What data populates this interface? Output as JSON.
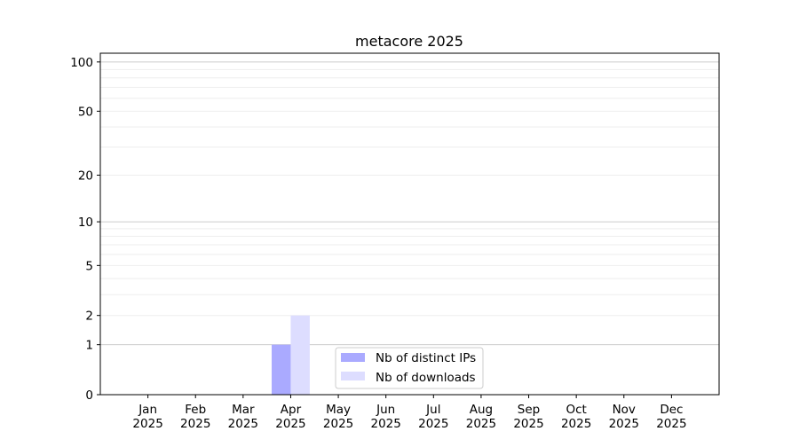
{
  "chart_data": {
    "type": "bar",
    "title": "metacore 2025",
    "xlabel": "",
    "ylabel": "",
    "categories": [
      "Jan\n2025",
      "Feb\n2025",
      "Mar\n2025",
      "Apr\n2025",
      "May\n2025",
      "Jun\n2025",
      "Jul\n2025",
      "Aug\n2025",
      "Sep\n2025",
      "Oct\n2025",
      "Nov\n2025",
      "Dec\n2025"
    ],
    "series": [
      {
        "name": "Nb of distinct IPs",
        "color": "#aaaaff",
        "values": [
          0,
          0,
          0,
          1,
          0,
          0,
          0,
          0,
          0,
          0,
          0,
          0
        ]
      },
      {
        "name": "Nb of downloads",
        "color": "#ddddff",
        "values": [
          0,
          0,
          0,
          2,
          0,
          0,
          0,
          0,
          0,
          0,
          0,
          0
        ]
      }
    ],
    "yscale": "log(1+y)",
    "yticks": [
      0,
      1,
      2,
      5,
      10,
      20,
      50,
      100
    ],
    "ytick_labels": [
      "0",
      "1",
      "2",
      "5",
      "10",
      "20",
      "50",
      "100"
    ],
    "ylim": [
      0,
      113
    ],
    "grid": true,
    "legend_position": "lower-center"
  }
}
